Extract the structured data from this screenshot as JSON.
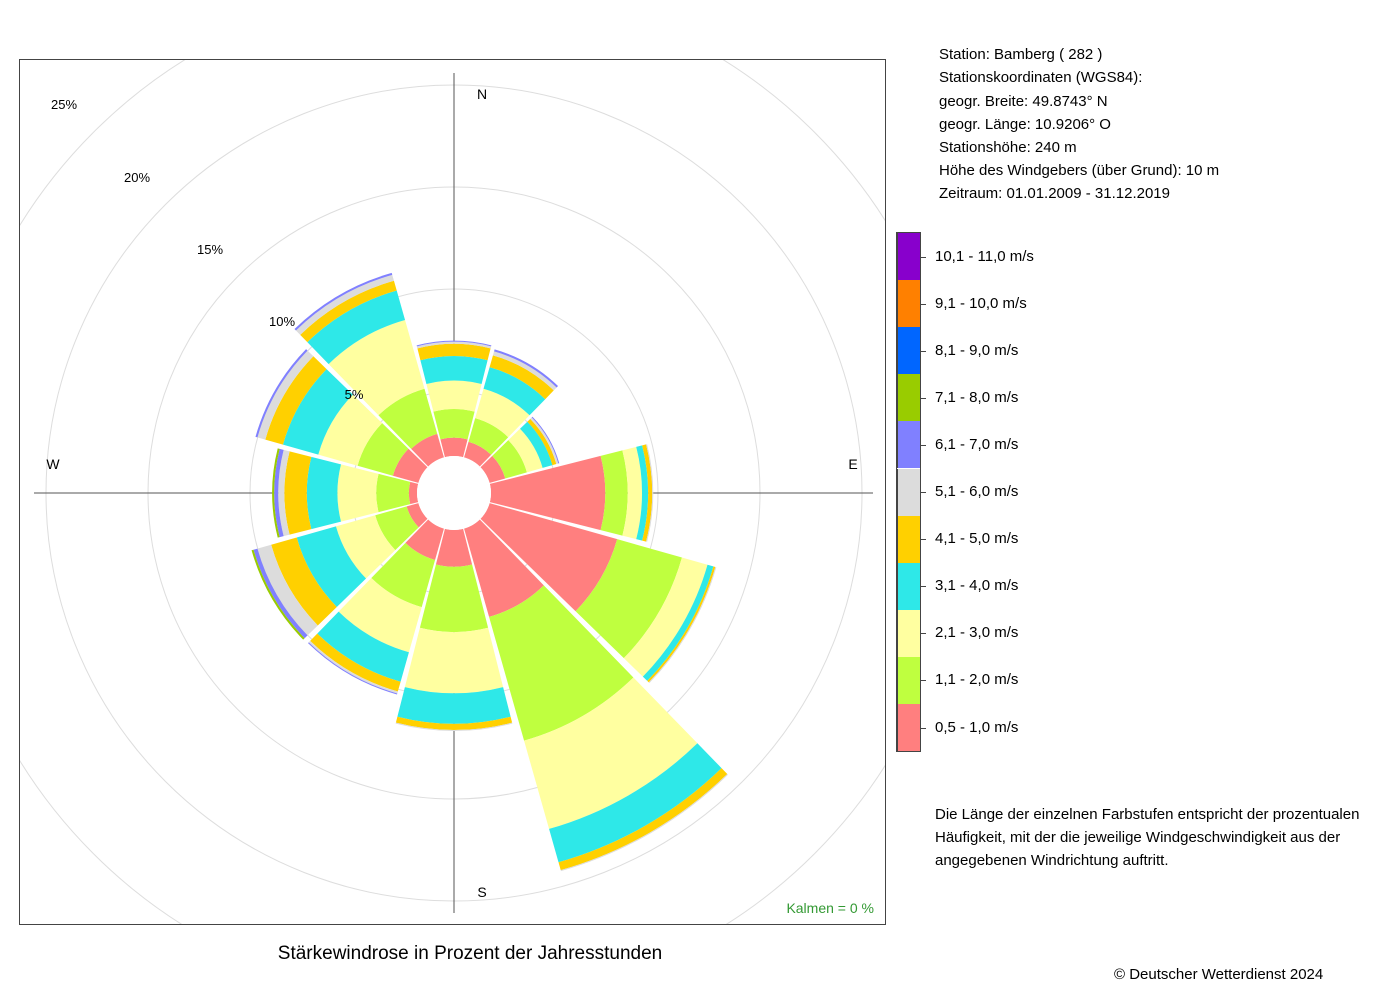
{
  "chart_data": {
    "type": "wind_rose",
    "title": "Stärkewindrose in Prozent der Jahresstunden",
    "calm_label": "Kalmen  =  0 %",
    "directions": [
      "N",
      "E",
      "S",
      "W"
    ],
    "ring_labels": [
      "5%",
      "10%",
      "15%",
      "20%",
      "25%"
    ],
    "ring_values": [
      5,
      10,
      15,
      20,
      25
    ],
    "r_max_percent": 25,
    "speed_classes": [
      {
        "label": "0,5 - 1,0 m/s",
        "color": "#FF7F7F"
      },
      {
        "label": "1,1 - 2,0 m/s",
        "color": "#BFFF3F"
      },
      {
        "label": "2,1 - 3,0 m/s",
        "color": "#FFFFA0"
      },
      {
        "label": "3,1 - 4,0 m/s",
        "color": "#2EE8E8"
      },
      {
        "label": "4,1 - 5,0 m/s",
        "color": "#FFD000"
      },
      {
        "label": "5,1 - 6,0 m/s",
        "color": "#DCDCDC"
      },
      {
        "label": "6,1 - 7,0 m/s",
        "color": "#8080FF"
      },
      {
        "label": "7,1 - 8,0 m/s",
        "color": "#99CC00"
      },
      {
        "label": "8,1 - 9,0 m/s",
        "color": "#0066FF"
      },
      {
        "label": "9,1 - 10,0 m/s",
        "color": "#FF8000"
      },
      {
        "label": "10,1 - 11,0 m/s",
        "color": "#8800CC"
      }
    ],
    "sectors": [
      {
        "direction_deg": 0,
        "values": [
          0.9,
          1.4,
          1.4,
          1.2,
          0.6,
          0.1,
          0.05
        ]
      },
      {
        "direction_deg": 30,
        "values": [
          0.8,
          1.2,
          1.5,
          1.1,
          0.6,
          0.2,
          0.1
        ]
      },
      {
        "direction_deg": 60,
        "values": [
          0.8,
          1.1,
          0.8,
          0.5,
          0.2,
          0.1,
          0.05
        ]
      },
      {
        "direction_deg": 90,
        "values": [
          5.6,
          1.1,
          0.7,
          0.3,
          0.2,
          0.05
        ]
      },
      {
        "direction_deg": 120,
        "values": [
          6.5,
          3.3,
          1.3,
          0.3,
          0.1,
          0.05
        ]
      },
      {
        "direction_deg": 150,
        "values": [
          4.5,
          6.3,
          4.5,
          1.7,
          0.4,
          0.05
        ]
      },
      {
        "direction_deg": 180,
        "values": [
          1.8,
          3.2,
          3.0,
          1.5,
          0.3,
          0.05
        ]
      },
      {
        "direction_deg": 210,
        "values": [
          1.6,
          2.4,
          2.3,
          1.5,
          0.5,
          0.1,
          0.05
        ]
      },
      {
        "direction_deg": 240,
        "values": [
          0.6,
          1.6,
          2.0,
          2.0,
          1.3,
          0.7,
          0.2,
          0.1
        ]
      },
      {
        "direction_deg": 270,
        "values": [
          0.4,
          1.6,
          1.9,
          1.5,
          1.1,
          0.3,
          0.2,
          0.1
        ]
      },
      {
        "direction_deg": 300,
        "values": [
          1.3,
          1.8,
          2.0,
          1.8,
          0.9,
          0.4,
          0.1
        ]
      },
      {
        "direction_deg": 330,
        "values": [
          1.2,
          2.3,
          3.5,
          1.5,
          0.5,
          0.3,
          0.1
        ]
      }
    ]
  },
  "info": {
    "station": "Station:  Bamberg  ( 282 )",
    "coordinates_header": "Stationskoordinaten (WGS84):",
    "latitude": "geogr. Breite: 49.8743° N",
    "longitude": "geogr. Länge: 10.9206° O",
    "altitude": "Stationshöhe: 240 m",
    "sensor_height": "Höhe des Windgebers (über Grund): 10 m",
    "period": "Zeitraum: 01.01.2009 - 31.12.2019"
  },
  "note": [
    "Die Länge der einzelnen Farbstufen entspricht der prozentualen",
    "Häufigkeit, mit der die jeweilige Windgeschwindigkeit aus der",
    "angegebenen Windrichtung auftritt."
  ],
  "copyright": "© Deutscher Wetterdienst  2024"
}
